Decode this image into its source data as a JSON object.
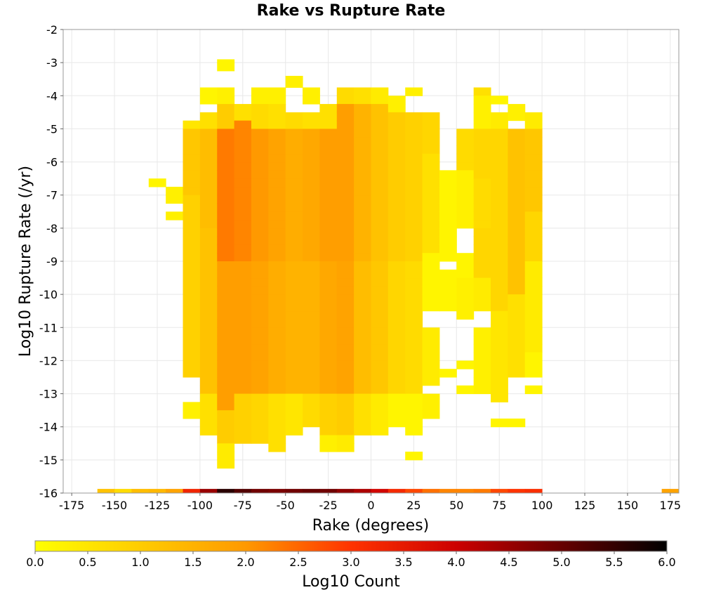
{
  "chart_data": {
    "type": "heatmap",
    "title": "Rake vs Rupture Rate",
    "xlabel": "Rake (degrees)",
    "ylabel": "Log10 Rupture Rate (/yr)",
    "xlim": [
      -180,
      180
    ],
    "ylim": [
      -16,
      -2
    ],
    "x_bin_width": 10,
    "y_bin_width": 0.25,
    "x_ticks": [
      "-175",
      "-150",
      "-125",
      "-100",
      "-75",
      "-50",
      "-25",
      "0",
      "25",
      "50",
      "75",
      "100",
      "125",
      "150",
      "175"
    ],
    "y_ticks": [
      "-2",
      "-3",
      "-4",
      "-5",
      "-6",
      "-7",
      "-8",
      "-9",
      "-10",
      "-11",
      "-12",
      "-13",
      "-14",
      "-15",
      "-16"
    ],
    "grid": true,
    "colorbar": {
      "label": "Log10 Count",
      "range": [
        0,
        6
      ],
      "ticks": [
        "0.0",
        "0.5",
        "1.0",
        "1.5",
        "2.0",
        "2.5",
        "3.0",
        "3.5",
        "4.0",
        "4.5",
        "5.0",
        "5.5",
        "6.0"
      ],
      "colors": [
        "#ffff00",
        "#ffcc00",
        "#ff9900",
        "#ff3300",
        "#cc0000",
        "#660000",
        "#000000"
      ]
    },
    "bottom_row": {
      "y": -16,
      "x": [
        -155,
        -145,
        -135,
        -125,
        -115,
        -105,
        -95,
        -85,
        -75,
        -65,
        -55,
        -45,
        -35,
        -25,
        -15,
        -5,
        5,
        15,
        25,
        35,
        45,
        55,
        65,
        75,
        85,
        95,
        175
      ],
      "values": [
        1.2,
        0.7,
        1.3,
        1.4,
        1.8,
        3.3,
        4.5,
        5.6,
        5.2,
        4.9,
        4.8,
        4.9,
        5.0,
        4.9,
        4.6,
        4.3,
        3.9,
        3.2,
        2.8,
        2.4,
        2.2,
        2.2,
        2.3,
        2.8,
        3.0,
        3.1,
        1.8
      ]
    },
    "columns": [
      {
        "x": -125,
        "segments": [
          [
            -6.75,
            -6.5,
            0.2
          ]
        ]
      },
      {
        "x": -115,
        "segments": [
          [
            -7.25,
            -6.75,
            0.3
          ],
          [
            -7.75,
            -7.5,
            0.3
          ]
        ]
      },
      {
        "x": -105,
        "segments": [
          [
            -5.0,
            -4.75,
            0.5
          ],
          [
            -7.0,
            -5.0,
            1.1
          ],
          [
            -12.5,
            -7.0,
            0.9
          ],
          [
            -13.75,
            -13.25,
            0.3
          ]
        ]
      },
      {
        "x": -95,
        "segments": [
          [
            -4.25,
            -3.75,
            0.2
          ],
          [
            -5.0,
            -4.5,
            0.6
          ],
          [
            -8.0,
            -5.0,
            1.3
          ],
          [
            -13.0,
            -8.0,
            1.2
          ],
          [
            -14.25,
            -13.0,
            0.6
          ]
        ]
      },
      {
        "x": -85,
        "segments": [
          [
            -3.25,
            -2.9,
            0.2
          ],
          [
            -4.25,
            -3.75,
            0.3
          ],
          [
            -5.0,
            -4.25,
            1.0
          ],
          [
            -9.0,
            -5.0,
            2.3
          ],
          [
            -13.5,
            -9.0,
            1.9
          ],
          [
            -14.5,
            -13.5,
            1.0
          ],
          [
            -15.25,
            -14.5,
            0.4
          ]
        ]
      },
      {
        "x": -75,
        "segments": [
          [
            -4.75,
            -4.25,
            0.6
          ],
          [
            -9.0,
            -4.75,
            2.2
          ],
          [
            -13.0,
            -9.0,
            1.9
          ],
          [
            -14.5,
            -13.0,
            0.9
          ]
        ]
      },
      {
        "x": -65,
        "segments": [
          [
            -4.25,
            -3.75,
            0.3
          ],
          [
            -5.0,
            -4.25,
            0.7
          ],
          [
            -9.0,
            -5.0,
            2.0
          ],
          [
            -13.0,
            -9.0,
            1.8
          ],
          [
            -14.5,
            -13.0,
            0.8
          ]
        ]
      },
      {
        "x": -55,
        "segments": [
          [
            -4.25,
            -3.75,
            0.3
          ],
          [
            -5.0,
            -4.25,
            0.6
          ],
          [
            -9.0,
            -5.0,
            1.8
          ],
          [
            -13.0,
            -9.0,
            1.6
          ],
          [
            -14.75,
            -13.0,
            0.6
          ]
        ]
      },
      {
        "x": -45,
        "segments": [
          [
            -3.75,
            -3.4,
            0.3
          ],
          [
            -5.0,
            -4.5,
            0.7
          ],
          [
            -9.0,
            -5.0,
            1.6
          ],
          [
            -13.0,
            -9.0,
            1.5
          ],
          [
            -14.25,
            -13.0,
            0.5
          ]
        ]
      },
      {
        "x": -35,
        "segments": [
          [
            -4.25,
            -3.75,
            0.3
          ],
          [
            -5.0,
            -4.5,
            0.6
          ],
          [
            -9.0,
            -5.0,
            1.7
          ],
          [
            -13.0,
            -9.0,
            1.5
          ],
          [
            -14.0,
            -13.0,
            0.7
          ]
        ]
      },
      {
        "x": -25,
        "segments": [
          [
            -5.0,
            -4.25,
            0.6
          ],
          [
            -9.0,
            -5.0,
            1.9
          ],
          [
            -13.0,
            -9.0,
            1.7
          ],
          [
            -14.25,
            -13.0,
            0.9
          ],
          [
            -14.75,
            -14.25,
            0.3
          ]
        ]
      },
      {
        "x": -15,
        "segments": [
          [
            -4.25,
            -3.75,
            0.7
          ],
          [
            -9.0,
            -4.25,
            1.9
          ],
          [
            -13.0,
            -9.0,
            1.8
          ],
          [
            -14.25,
            -13.0,
            1.0
          ],
          [
            -14.75,
            -14.25,
            0.4
          ]
        ]
      },
      {
        "x": -5,
        "segments": [
          [
            -4.25,
            -3.75,
            0.6
          ],
          [
            -9.0,
            -4.25,
            1.5
          ],
          [
            -13.0,
            -9.0,
            1.3
          ],
          [
            -14.25,
            -13.0,
            0.6
          ]
        ]
      },
      {
        "x": 5,
        "segments": [
          [
            -4.25,
            -3.75,
            0.4
          ],
          [
            -9.0,
            -4.25,
            1.2
          ],
          [
            -13.0,
            -9.0,
            1.1
          ],
          [
            -14.25,
            -13.0,
            0.4
          ]
        ]
      },
      {
        "x": 15,
        "segments": [
          [
            -4.5,
            -4.0,
            0.3
          ],
          [
            -9.0,
            -4.5,
            1.0
          ],
          [
            -13.0,
            -9.0,
            0.8
          ],
          [
            -14.0,
            -13.0,
            0.2
          ]
        ]
      },
      {
        "x": 25,
        "segments": [
          [
            -4.0,
            -3.75,
            0.3
          ],
          [
            -9.0,
            -4.5,
            0.9
          ],
          [
            -13.0,
            -9.0,
            0.7
          ],
          [
            -14.25,
            -13.0,
            0.2
          ],
          [
            -15.0,
            -14.75,
            0.2
          ]
        ]
      },
      {
        "x": 35,
        "segments": [
          [
            -5.75,
            -4.5,
            0.8
          ],
          [
            -8.75,
            -5.75,
            0.6
          ],
          [
            -10.5,
            -8.75,
            0.2
          ],
          [
            -12.75,
            -11.0,
            0.4
          ],
          [
            -13.75,
            -13.0,
            0.3
          ]
        ]
      },
      {
        "x": 45,
        "segments": [
          [
            -7.75,
            -6.25,
            0.2
          ],
          [
            -9.0,
            -7.75,
            0.2
          ],
          [
            -10.5,
            -9.25,
            0.2
          ],
          [
            -12.5,
            -12.25,
            0.2
          ]
        ]
      },
      {
        "x": 55,
        "segments": [
          [
            -6.25,
            -5.0,
            0.7
          ],
          [
            -8.0,
            -6.25,
            0.3
          ],
          [
            -9.5,
            -8.75,
            0.2
          ],
          [
            -10.75,
            -9.5,
            0.3
          ],
          [
            -12.25,
            -12.0,
            0.2
          ],
          [
            -13.0,
            -12.75,
            0.2
          ]
        ]
      },
      {
        "x": 65,
        "segments": [
          [
            -4.0,
            -3.75,
            0.6
          ],
          [
            -5.0,
            -4.0,
            0.3
          ],
          [
            -6.5,
            -5.0,
            0.8
          ],
          [
            -8.0,
            -6.5,
            0.7
          ],
          [
            -9.5,
            -8.0,
            0.8
          ],
          [
            -10.5,
            -9.5,
            0.4
          ],
          [
            -11.5,
            -11.0,
            0.3
          ],
          [
            -13.0,
            -11.5,
            0.3
          ]
        ]
      },
      {
        "x": 75,
        "segments": [
          [
            -4.25,
            -4.0,
            0.2
          ],
          [
            -5.0,
            -4.5,
            0.4
          ],
          [
            -10.5,
            -5.0,
            0.8
          ],
          [
            -13.25,
            -10.5,
            0.5
          ],
          [
            -14.0,
            -13.75,
            0.2
          ]
        ]
      },
      {
        "x": 85,
        "segments": [
          [
            -4.75,
            -4.25,
            0.3
          ],
          [
            -10.0,
            -5.0,
            1.2
          ],
          [
            -12.5,
            -10.0,
            0.6
          ],
          [
            -14.0,
            -13.75,
            0.2
          ]
        ]
      },
      {
        "x": 95,
        "segments": [
          [
            -5.0,
            -4.5,
            0.4
          ],
          [
            -7.5,
            -5.0,
            1.1
          ],
          [
            -9.0,
            -7.5,
            0.8
          ],
          [
            -11.75,
            -9.0,
            0.4
          ],
          [
            -12.5,
            -11.75,
            0.2
          ],
          [
            -13.0,
            -12.75,
            0.2
          ]
        ]
      }
    ]
  }
}
